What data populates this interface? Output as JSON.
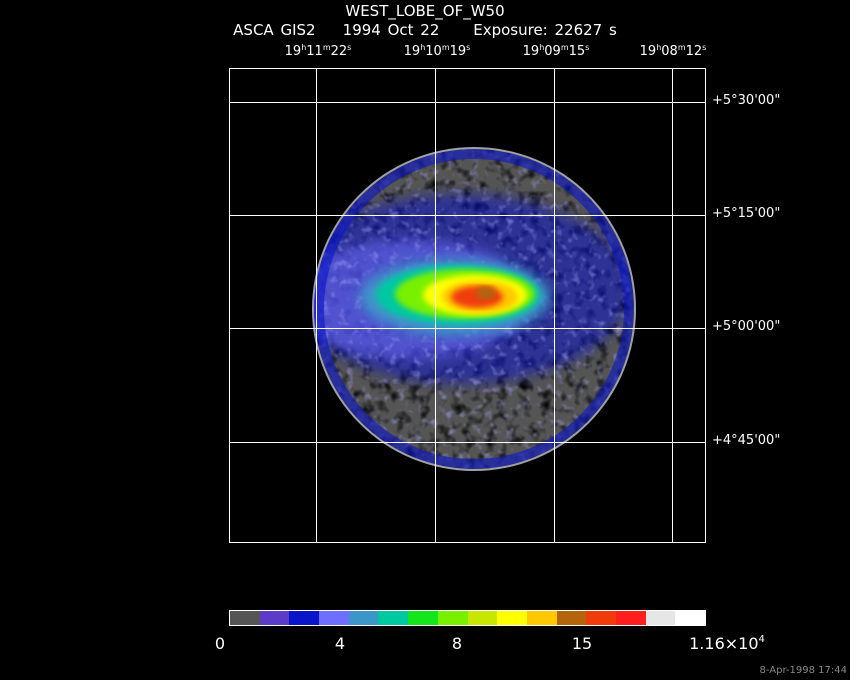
{
  "header": {
    "object": "WEST_LOBE_OF_W50",
    "instrument": "ASCA GIS2",
    "date": "1994 Oct 22",
    "exposure": "Exposure: 22627 s"
  },
  "ra_labels": [
    {
      "h": "19",
      "m": "11",
      "s": "22"
    },
    {
      "h": "19",
      "m": "10",
      "s": "19"
    },
    {
      "h": "19",
      "m": "09",
      "s": "15"
    },
    {
      "h": "19",
      "m": "08",
      "s": "12"
    }
  ],
  "dec_labels": [
    "+5°30'00\"",
    "+5°15'00\"",
    "+5°00'00\"",
    "+4°45'00\""
  ],
  "colorbar": {
    "colors": [
      "#555555",
      "#5a3cc8",
      "#0a14c8",
      "#6e6eff",
      "#3c96c8",
      "#00c8a0",
      "#14e61e",
      "#78f000",
      "#c8e600",
      "#ffff00",
      "#ffc800",
      "#b4640a",
      "#f03c0a",
      "#ff1e1e",
      "#e6e6e6",
      "#ffffff"
    ],
    "ticks": [
      "0",
      "4",
      "8",
      "15"
    ],
    "max_mantissa": "1.16×10",
    "max_exp": "4"
  },
  "timestamp": "8-Apr-1998 17:44"
}
